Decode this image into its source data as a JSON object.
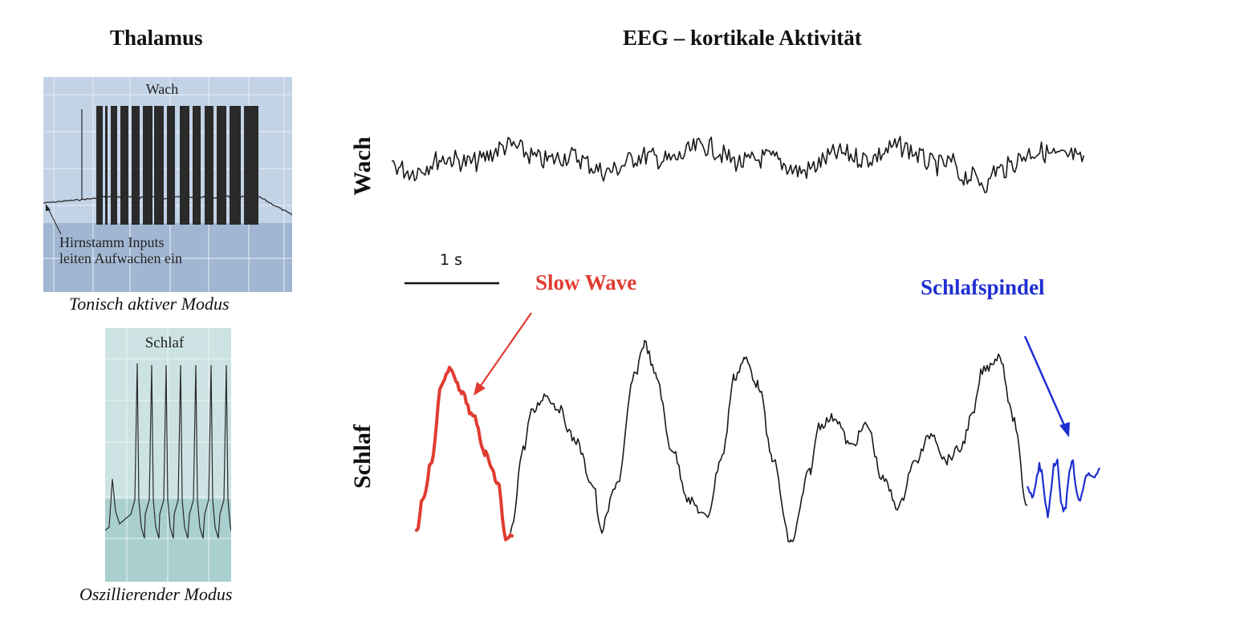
{
  "thalamus": {
    "title": "Thalamus",
    "wake_panel": {
      "label": "Wach",
      "annotation_line1": "Hirnstamm Inputs",
      "annotation_line2": "leiten Aufwachen ein",
      "caption": "Tonisch aktiver Modus",
      "colors": {
        "top": "#c3d3e6",
        "bottom": "#a0b6d2",
        "grid": "#e8eef6",
        "trace": "#2a2a2a"
      }
    },
    "sleep_panel": {
      "label": "Schlaf",
      "caption": "Oszillierender Modus",
      "colors": {
        "top": "#cde3e3",
        "bottom": "#a9cfcf",
        "grid": "#eaf4f4",
        "trace": "#2a2a2a"
      }
    }
  },
  "eeg": {
    "title": "EEG – kortikale Aktivität",
    "wake_label": "Wach",
    "sleep_label": "Schlaf",
    "scale_bar_label": "1 s",
    "slow_wave": {
      "label": "Slow Wave",
      "color": "#e03c31"
    },
    "spindle": {
      "label": "Schlafspindel",
      "color": "#1f2fd0"
    },
    "trace_color": "#1a1a1a"
  }
}
